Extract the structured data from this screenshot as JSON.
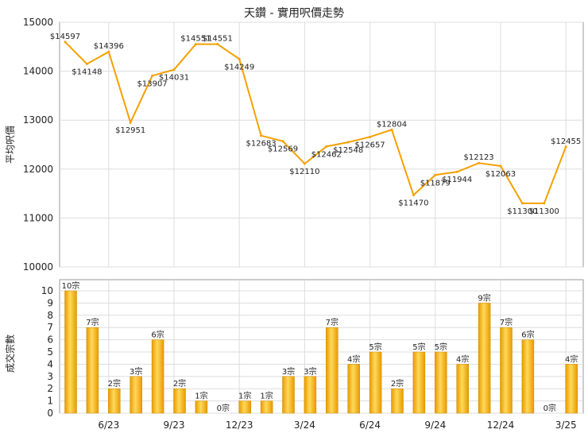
{
  "chart_data": [
    {
      "type": "line",
      "title": "天鑽 - 實用呎價走勢",
      "ylabel": "平均呎價",
      "ylim": [
        10000,
        15000
      ],
      "yticks": [
        10000,
        11000,
        12000,
        13000,
        14000,
        15000
      ],
      "x_tick_labels": [
        "6/23",
        "9/23",
        "12/23",
        "3/24",
        "6/24",
        "9/24",
        "12/24",
        "3/25"
      ],
      "grid": true,
      "line_color": "#f5a000",
      "points": [
        {
          "index": 0,
          "value": 14597,
          "label": "$14597"
        },
        {
          "index": 1,
          "value": 14148,
          "label": "$14148"
        },
        {
          "index": 2,
          "value": 14396,
          "label": "$14396"
        },
        {
          "index": 3,
          "value": 12951,
          "label": "$12951"
        },
        {
          "index": 4,
          "value": 13907,
          "label": "$13907"
        },
        {
          "index": 5,
          "value": 14031,
          "label": "$14031"
        },
        {
          "index": 6,
          "value": 14551,
          "label": "$14551"
        },
        {
          "index": 7,
          "value": 14551,
          "label": "$14551"
        },
        {
          "index": 8,
          "value": 14249,
          "label": "$14249"
        },
        {
          "index": 9,
          "value": 12683,
          "label": "$12683"
        },
        {
          "index": 10,
          "value": 12569,
          "label": "$12569"
        },
        {
          "index": 11,
          "value": 12110,
          "label": "$12110"
        },
        {
          "index": 12,
          "value": 12462,
          "label": "$12462"
        },
        {
          "index": 13,
          "value": 12548,
          "label": "$12548"
        },
        {
          "index": 14,
          "value": 12657,
          "label": "$12657"
        },
        {
          "index": 15,
          "value": 12804,
          "label": "$12804"
        },
        {
          "index": 16,
          "value": 11470,
          "label": "$11470"
        },
        {
          "index": 17,
          "value": 11879,
          "label": "$11879"
        },
        {
          "index": 18,
          "value": 11944,
          "label": "$11944"
        },
        {
          "index": 19,
          "value": 12123,
          "label": "$12123"
        },
        {
          "index": 20,
          "value": 12063,
          "label": "$12063"
        },
        {
          "index": 21,
          "value": 11300,
          "label": "$11300"
        },
        {
          "index": 22,
          "value": 11300,
          "label": "$11300"
        },
        {
          "index": 23,
          "value": 12455,
          "label": "$12455"
        }
      ]
    },
    {
      "type": "bar",
      "ylabel": "成交宗數",
      "ylim": [
        0,
        10
      ],
      "yticks": [
        0,
        1,
        2,
        3,
        4,
        5,
        6,
        7,
        8,
        9,
        10
      ],
      "x_tick_labels": [
        "6/23",
        "9/23",
        "12/23",
        "3/24",
        "6/24",
        "9/24",
        "12/24",
        "3/25"
      ],
      "grid": true,
      "bar_color": "#f5a800",
      "values": [
        10,
        7,
        2,
        3,
        6,
        2,
        1,
        0,
        1,
        1,
        3,
        3,
        7,
        4,
        5,
        2,
        5,
        5,
        4,
        9,
        7,
        6,
        0,
        4
      ],
      "labels": [
        "10宗",
        "7宗",
        "2宗",
        "3宗",
        "6宗",
        "2宗",
        "1宗",
        "0宗",
        "1宗",
        "1宗",
        "3宗",
        "3宗",
        "7宗",
        "4宗",
        "5宗",
        "2宗",
        "5宗",
        "5宗",
        "4宗",
        "9宗",
        "7宗",
        "6宗",
        "0宗",
        "4宗"
      ]
    }
  ]
}
